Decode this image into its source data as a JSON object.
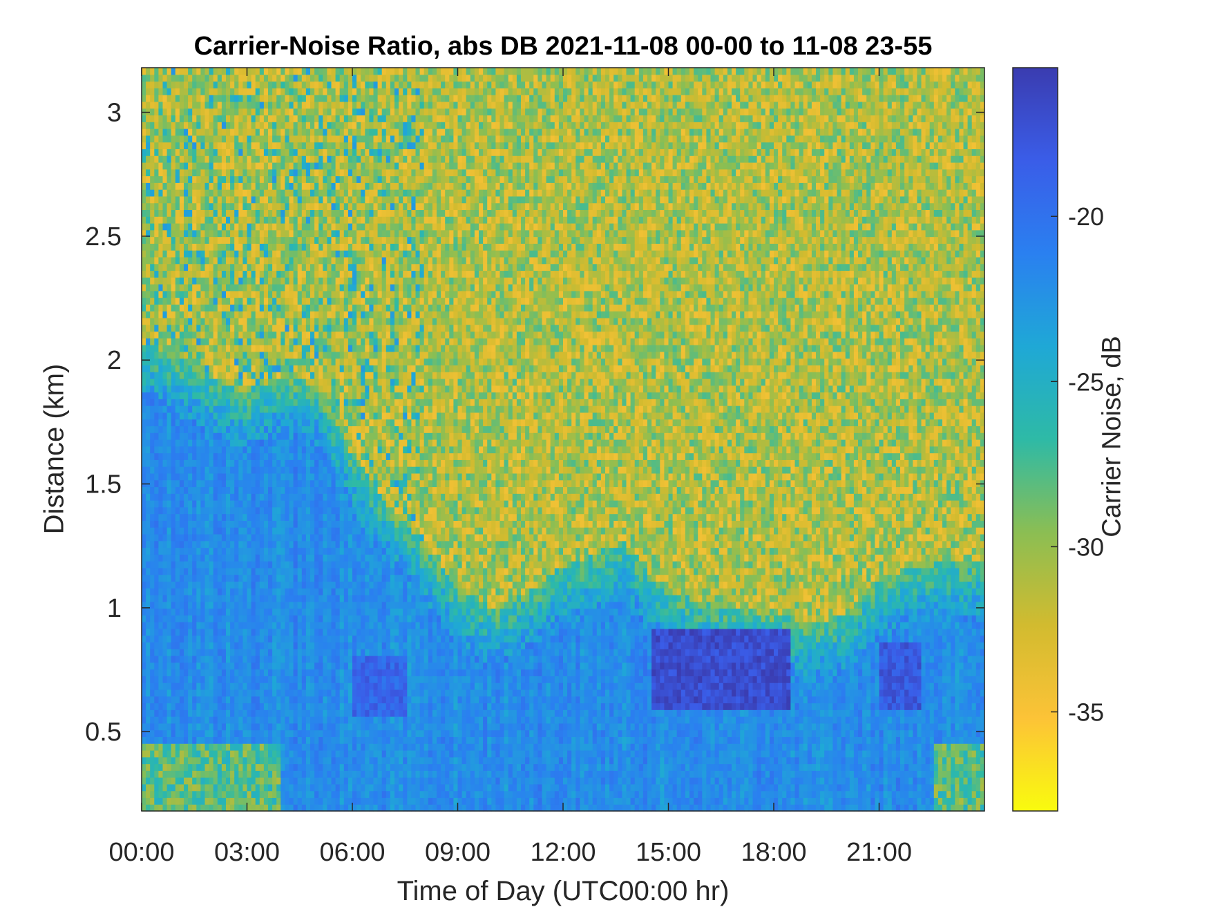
{
  "chart_data": {
    "type": "heatmap",
    "title": "Carrier-Noise Ratio, abs DB 2021-11-08 00-00 to 11-08 23-55",
    "xlabel": "Time of Day (UTC00:00 hr)",
    "ylabel": "Distance (km)",
    "x_unit": "hours",
    "xlim": [
      0,
      24
    ],
    "x_ticks": [
      0,
      3,
      6,
      9,
      12,
      15,
      18,
      21
    ],
    "x_tick_labels": [
      "00:00",
      "03:00",
      "06:00",
      "09:00",
      "12:00",
      "15:00",
      "18:00",
      "21:00"
    ],
    "ylim": [
      0.18,
      3.18
    ],
    "y_ticks": [
      0.5,
      1,
      1.5,
      2,
      2.5,
      3
    ],
    "y_tick_labels": [
      "0.5",
      "1",
      "1.5",
      "2",
      "2.5",
      "3"
    ],
    "colorbar": {
      "label": "Carrier Noise, dB",
      "range": [
        -38,
        -15.5
      ],
      "ticks": [
        -20,
        -25,
        -30,
        -35
      ],
      "tick_labels": [
        "-20",
        "-25",
        "-30",
        "-35"
      ],
      "colormap": "parula-reversed",
      "colors": [
        "#F9FB0E",
        "#FCC337",
        "#D2BB2F",
        "#8BBE53",
        "#2EBAA6",
        "#1FA8D6",
        "#2A80F0",
        "#3A5DE8",
        "#3A3CB0"
      ]
    },
    "boundary_layer_top_km": {
      "x": [
        0,
        1,
        2,
        3,
        4,
        5,
        6,
        7,
        8,
        9,
        10,
        11,
        12,
        13,
        13.7,
        14.5,
        15,
        16,
        17,
        18,
        19,
        20,
        21,
        22,
        23,
        24
      ],
      "y": [
        1.95,
        1.9,
        1.82,
        1.75,
        1.82,
        1.78,
        1.5,
        1.3,
        1.15,
        0.95,
        0.88,
        0.95,
        1.05,
        1.1,
        1.15,
        1.02,
        0.95,
        0.9,
        0.88,
        0.85,
        0.82,
        0.85,
        1.0,
        1.05,
        1.06,
        1.06
      ]
    },
    "strong_signal_regions": [
      {
        "x_range": [
          14.5,
          18.5
        ],
        "y_range": [
          0.6,
          0.92
        ],
        "value_db": -17
      },
      {
        "x_range": [
          6.0,
          7.5
        ],
        "y_range": [
          0.55,
          0.8
        ],
        "value_db": -19
      },
      {
        "x_range": [
          21.0,
          22.2
        ],
        "y_range": [
          0.6,
          0.85
        ],
        "value_db": -18
      }
    ]
  }
}
